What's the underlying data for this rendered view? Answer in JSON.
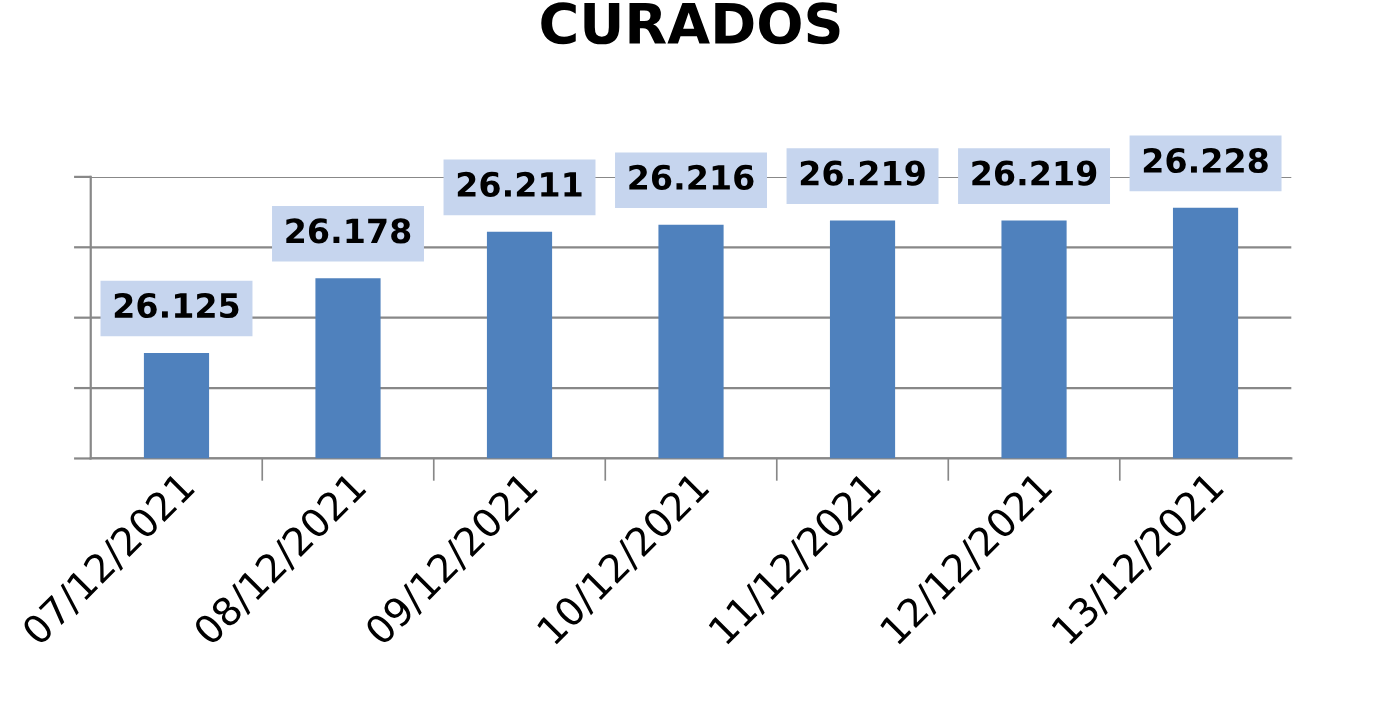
{
  "chart_data": {
    "type": "bar",
    "title": "CURADOS",
    "categories": [
      "07/12/2021",
      "08/12/2021",
      "09/12/2021",
      "10/12/2021",
      "11/12/2021",
      "12/12/2021",
      "13/12/2021"
    ],
    "values": [
      26125,
      26178,
      26211,
      26216,
      26219,
      26219,
      26228
    ],
    "value_labels": [
      "26.125",
      "26.178",
      "26.211",
      "26.216",
      "26.219",
      "26.219",
      "26.228"
    ],
    "color": "#4f81bd",
    "ylim": [
      26050,
      26250
    ],
    "yticks": [
      {
        "value": 26050,
        "label": null
      },
      {
        "value": 26100,
        "label": null
      },
      {
        "value": 26150,
        "label": null
      },
      {
        "value": 26200,
        "label": null
      },
      {
        "value": 26250,
        "label": null
      }
    ],
    "grid": "y",
    "tick_labels": "x",
    "legend": false
  }
}
